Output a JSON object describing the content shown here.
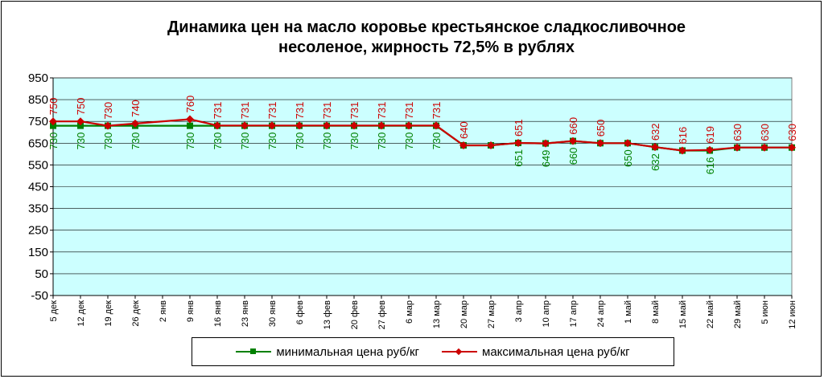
{
  "chart_data": {
    "type": "line",
    "title": "Динамика цен на масло коровье крестьянское  сладкосливочное несоленое, жирность 72,5%  в рублях",
    "title_lines": [
      "Динамика цен на масло коровье крестьянское  сладкосливочное",
      "несоленое, жирность 72,5%  в рублях"
    ],
    "categories": [
      "5 дек",
      "12 дек",
      "19 дек",
      "26 дек",
      "2 янв",
      "9 янв",
      "16 янв",
      "23 янв",
      "30 янв",
      "6 фев",
      "13 фев",
      "20 фев",
      "27 фев",
      "6 мар",
      "13 мар",
      "20 мар",
      "27 мар",
      "3 апр",
      "10 апр",
      "17 апр",
      "24 апр",
      "1 май",
      "8 май",
      "15 май",
      "22 май",
      "29 май",
      "5 июн",
      "12 июн"
    ],
    "ylim": [
      -50,
      950
    ],
    "yticks": [
      -50,
      50,
      150,
      250,
      350,
      450,
      550,
      650,
      750,
      850,
      950
    ],
    "ytick_labels": [
      "-50",
      "50",
      "150",
      "250",
      "350",
      "450",
      "550",
      "650",
      "750",
      "850",
      "950"
    ],
    "plot_background": "#ccffff",
    "grid": "horizontal",
    "legend_position": "bottom",
    "series": [
      {
        "name": "минимальная цена руб/кг",
        "color": "#008000",
        "marker": "square",
        "values": [
          730,
          730,
          730,
          730,
          null,
          730,
          730,
          730,
          730,
          730,
          730,
          730,
          730,
          730,
          730,
          640,
          640,
          651,
          649,
          660,
          650,
          650,
          632,
          616,
          616,
          630,
          630,
          630
        ],
        "labels": [
          "730",
          "730",
          "730",
          "730",
          "",
          "730",
          "730",
          "730",
          "730",
          "730",
          "730",
          "730",
          "730",
          "730",
          "730",
          "",
          "",
          "651",
          "649",
          "660",
          "",
          "650",
          "632",
          "",
          "616",
          "",
          "",
          ""
        ]
      },
      {
        "name": "максимальная цена руб/кг",
        "color": "#cc0000",
        "marker": "diamond",
        "values": [
          750,
          750,
          730,
          740,
          null,
          760,
          731,
          731,
          731,
          731,
          731,
          731,
          731,
          731,
          731,
          640,
          640,
          651,
          649,
          660,
          650,
          650,
          632,
          616,
          619,
          630,
          630,
          630
        ],
        "labels": [
          "750",
          "750",
          "730",
          "740",
          "",
          "760",
          "731",
          "731",
          "731",
          "731",
          "731",
          "731",
          "731",
          "731",
          "731",
          "640",
          "",
          "651",
          "",
          "660",
          "650",
          "",
          "632",
          "616",
          "619",
          "630",
          "630",
          "630"
        ]
      }
    ]
  }
}
